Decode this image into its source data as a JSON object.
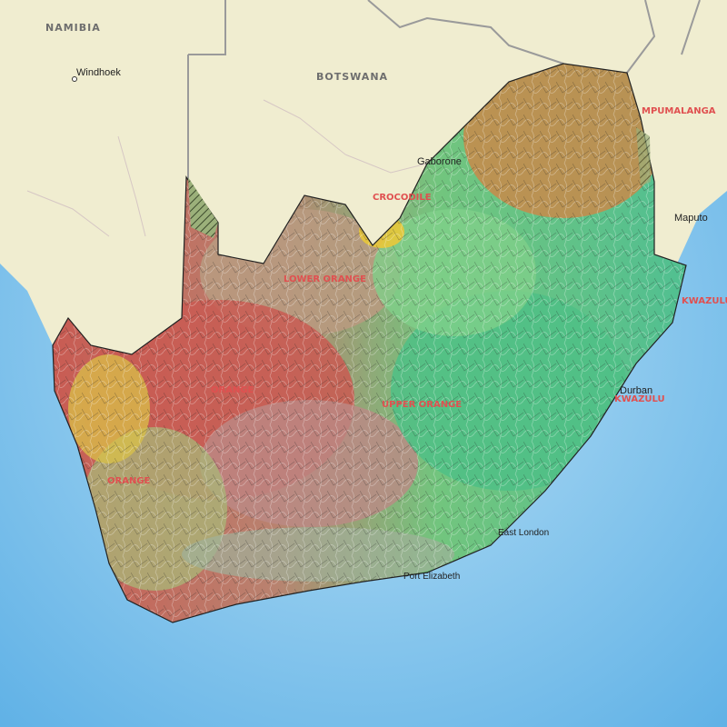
{
  "map": {
    "countries": [
      "NAMIBIA",
      "BOTSWANA"
    ],
    "cities": [
      "Windhoek",
      "Gaborone",
      "Maputo",
      "Durban",
      "East London",
      "Port Elizabeth"
    ],
    "regions": [
      "CROCODILE",
      "MPUMALANGA",
      "ORANGE",
      "ORANGE",
      "UPPER ORANGE",
      "KWAZULU",
      "KWAZULU",
      "LOWER ORANGE"
    ],
    "colors": {
      "ocean": "#8ec9ee",
      "land": "#f0edd0",
      "border": "#808080",
      "region_label": "#e05050",
      "west_dry": "#c95a52",
      "east_wet": "#5ecb8a",
      "north": "#c98a4a",
      "mid": "#b89a80"
    }
  }
}
